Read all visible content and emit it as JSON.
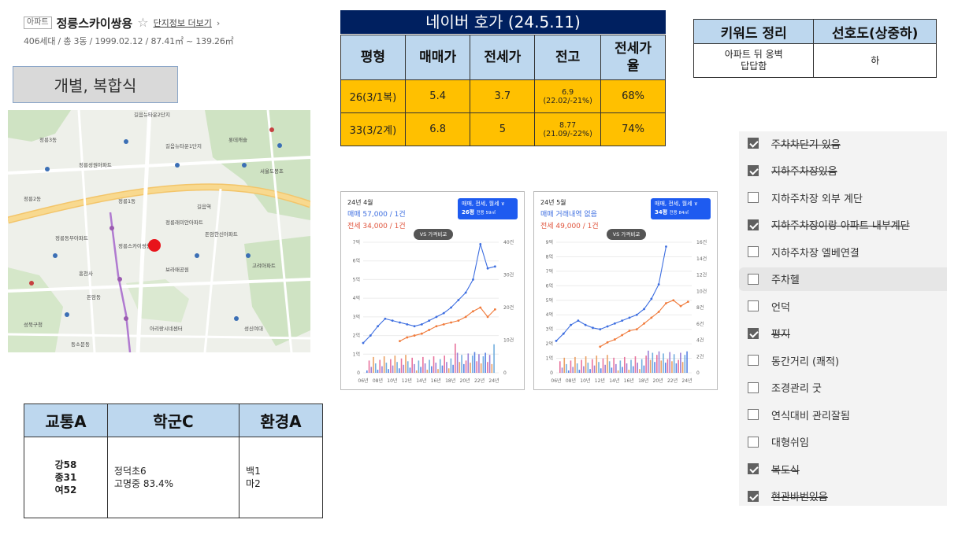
{
  "header": {
    "type_tag": "아파트",
    "name": "정릉스카이쌍용",
    "more_label": "단지정보 더보기",
    "meta": "406세대 / 총 3동 / 1999.02.12 / 87.41㎡ ~ 139.26㎡"
  },
  "type_box": {
    "label": "개별, 복합식"
  },
  "env_table": {
    "headers": [
      "교통A",
      "학군C",
      "환경A"
    ],
    "transport": [
      "강58",
      "종31",
      "여52"
    ],
    "school": [
      "정덕초6",
      "고명중 83.4%"
    ],
    "environment": [
      "백1",
      "마2"
    ]
  },
  "price": {
    "title": "네이버 호가 (24.5.11)",
    "headers": [
      "평형",
      "매매가",
      "전세가",
      "전고",
      "전세가율"
    ],
    "rows": [
      {
        "type": "26(3/1복)",
        "sale": "5.4",
        "jeonse": "3.7",
        "peak": "6.9",
        "peak_note": "(22.02/-21%)",
        "ratio": "68%"
      },
      {
        "type": "33(3/2계)",
        "sale": "6.8",
        "jeonse": "5",
        "peak": "8.77",
        "peak_note": "(21.09/-22%)",
        "ratio": "74%"
      }
    ]
  },
  "keywords": {
    "headers": [
      "키워드 정리",
      "선호도(상중하)"
    ],
    "row": {
      "keyword_line1": "아파트 뒤 옹벽",
      "keyword_line2": "답답함",
      "pref": "하"
    }
  },
  "charts": [
    {
      "date": "24년 4월",
      "sale_text": "매매 57,000 / 1건",
      "rent_text": "전세 34,000 / 1건",
      "badge_line1": "매매, 전세, 월세 ∨",
      "badge_line2": "26평",
      "badge_area": "전용 59㎡",
      "vs_label": "VS 가격비교"
    },
    {
      "date": "24년 5월",
      "sale_text": "매매 거래내역 없음",
      "rent_text": "전세 49,000 / 1건",
      "badge_line1": "매매, 전세, 월세 ∨",
      "badge_line2": "34평",
      "badge_area": "전용 84㎡",
      "vs_label": "VS 가격비교"
    }
  ],
  "chart_data": [
    {
      "type": "line",
      "x_ticks": [
        "06년",
        "08년",
        "10년",
        "12년",
        "14년",
        "16년",
        "18년",
        "20년",
        "22년",
        "24년"
      ],
      "y_left_ticks": [
        "0",
        "1억",
        "2억",
        "3억",
        "4억",
        "5억",
        "6억",
        "7억"
      ],
      "y_right_ticks": [
        "0",
        "10건",
        "20건",
        "30건",
        "40건"
      ],
      "ylim": [
        0,
        7
      ],
      "series": [
        {
          "x": [
            2006,
            2007,
            2008,
            2009,
            2010,
            2011,
            2012,
            2013,
            2014,
            2015,
            2016,
            2017,
            2018,
            2019,
            2020,
            2021,
            2022,
            2023,
            2024
          ],
          "values": [
            1.6,
            2.0,
            2.5,
            2.9,
            2.8,
            2.7,
            2.6,
            2.5,
            2.6,
            2.8,
            3.0,
            3.2,
            3.5,
            3.9,
            4.3,
            5.0,
            6.9,
            5.6,
            5.7
          ]
        },
        {
          "x": [
            2011,
            2012,
            2013,
            2014,
            2015,
            2016,
            2017,
            2018,
            2019,
            2020,
            2021,
            2022,
            2023,
            2024
          ],
          "values": [
            1.7,
            1.9,
            2.0,
            2.1,
            2.3,
            2.5,
            2.6,
            2.7,
            2.8,
            3.0,
            3.3,
            3.5,
            3.0,
            3.4
          ]
        }
      ]
    },
    {
      "type": "line",
      "x_ticks": [
        "06년",
        "08년",
        "10년",
        "12년",
        "14년",
        "16년",
        "18년",
        "20년",
        "22년",
        "24년"
      ],
      "y_left_ticks": [
        "0",
        "1억",
        "2억",
        "3억",
        "4억",
        "5억",
        "6억",
        "7억",
        "8억",
        "9억"
      ],
      "y_right_ticks": [
        "0",
        "2건",
        "4건",
        "6건",
        "8건",
        "10건",
        "12건",
        "14건",
        "16건"
      ],
      "ylim": [
        0,
        9
      ],
      "series": [
        {
          "x": [
            2006,
            2007,
            2008,
            2009,
            2010,
            2011,
            2012,
            2013,
            2014,
            2015,
            2016,
            2017,
            2018,
            2019,
            2020,
            2021
          ],
          "values": [
            2.2,
            2.7,
            3.3,
            3.6,
            3.3,
            3.1,
            3.0,
            3.2,
            3.4,
            3.6,
            3.8,
            4.0,
            4.4,
            5.1,
            6.1,
            8.7
          ]
        },
        {
          "x": [
            2012,
            2013,
            2014,
            2015,
            2016,
            2017,
            2018,
            2019,
            2020,
            2021,
            2022,
            2023,
            2024
          ],
          "values": [
            1.8,
            2.1,
            2.3,
            2.6,
            2.9,
            3.0,
            3.4,
            3.8,
            4.2,
            4.8,
            5.0,
            4.6,
            4.9
          ]
        }
      ]
    }
  ],
  "checklist": [
    {
      "label": "주차차단기 있음",
      "checked": true,
      "strike": true
    },
    {
      "label": "지하주차장있음",
      "checked": true,
      "strike": true
    },
    {
      "label": "지하주차장 외부 계단",
      "checked": false,
      "strike": false
    },
    {
      "label": "지하주차장이랑 아파트 내부계단",
      "checked": true,
      "strike": true
    },
    {
      "label": "지하주차장 엘베연결",
      "checked": false,
      "strike": false
    },
    {
      "label": "주차헬",
      "checked": false,
      "strike": false
    },
    {
      "label": "언덕",
      "checked": false,
      "strike": false
    },
    {
      "label": "평지",
      "checked": true,
      "strike": true
    },
    {
      "label": "동간거리 (쾌적)",
      "checked": false,
      "strike": false
    },
    {
      "label": "조경관리 굿",
      "checked": false,
      "strike": false
    },
    {
      "label": "연식대비 관리잘됨",
      "checked": false,
      "strike": false
    },
    {
      "label": "대형쉬임",
      "checked": false,
      "strike": false
    },
    {
      "label": "복도식",
      "checked": true,
      "strike": true
    },
    {
      "label": "현관바번있음",
      "checked": true,
      "strike": true
    }
  ],
  "colors": {
    "header_blue": "#bdd7ee",
    "navy": "#002060",
    "orange": "#ffc000",
    "sale_line": "#3d6ee0",
    "rent_line": "#f07a3a",
    "marker_red": "#e8141b"
  }
}
